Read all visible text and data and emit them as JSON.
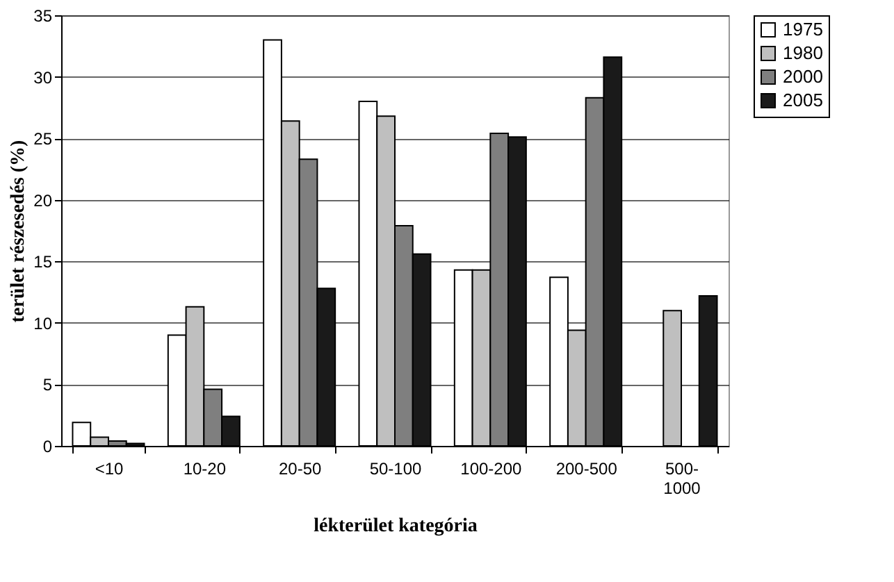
{
  "chart_data": {
    "type": "bar",
    "xlabel": "lékterület kategória",
    "ylabel": "terület részesedés (%)",
    "categories": [
      "<10",
      "10-20",
      "20-50",
      "50-100",
      "100-200",
      "200-500",
      "500-1000"
    ],
    "series": [
      {
        "name": "1975",
        "color": "#ffffff",
        "values": [
          1.9,
          9.0,
          33.0,
          28.0,
          14.3,
          13.7,
          null
        ]
      },
      {
        "name": "1980",
        "color": "#bfbfbf",
        "values": [
          0.7,
          11.3,
          26.4,
          26.8,
          14.3,
          9.4,
          11.0
        ]
      },
      {
        "name": "2000",
        "color": "#7f7f7f",
        "values": [
          0.4,
          4.6,
          23.3,
          17.9,
          25.4,
          28.3,
          null
        ]
      },
      {
        "name": "2005",
        "color": "#1a1a1a",
        "values": [
          0.2,
          2.4,
          12.8,
          15.6,
          25.1,
          31.6,
          12.2
        ]
      }
    ],
    "ylim": [
      0,
      35
    ],
    "yticks": [
      0,
      5,
      10,
      15,
      20,
      25,
      30,
      35
    ],
    "grid": "y",
    "legend": "right"
  }
}
